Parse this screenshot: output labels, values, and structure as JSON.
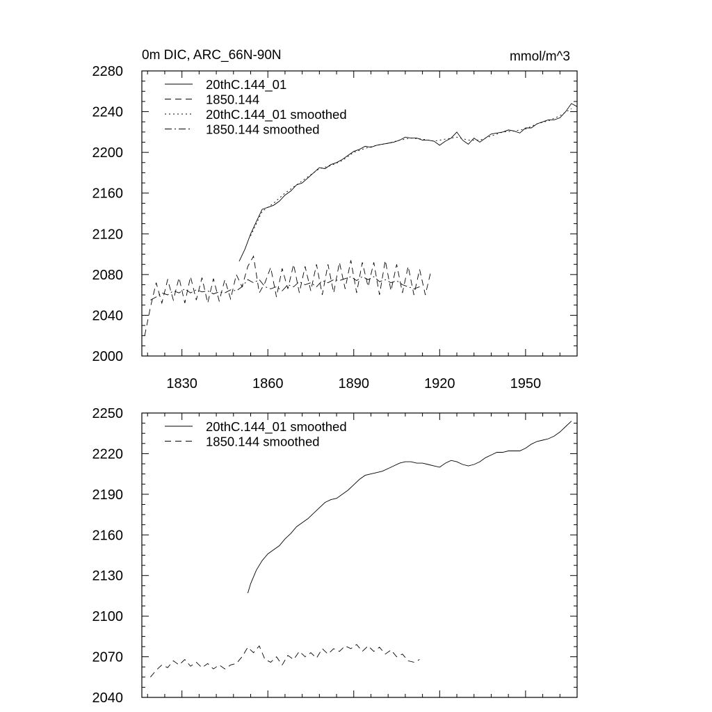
{
  "chart_data": [
    {
      "type": "line",
      "title": "0m DIC, ARC_66N-90N",
      "units": "mmol/m^3",
      "xlabel": "",
      "ylabel": "",
      "xlim": [
        1816,
        1968
      ],
      "ylim": [
        2000,
        2280
      ],
      "xticks": [
        1830,
        1860,
        1890,
        1920,
        1950
      ],
      "yticks": [
        2000,
        2040,
        2080,
        2120,
        2160,
        2200,
        2240,
        2280
      ],
      "legend_position": "top-left",
      "series": [
        {
          "name": "20thC.144_01",
          "style": "solid",
          "x": [
            1850,
            1852,
            1854,
            1856,
            1858,
            1860,
            1862,
            1864,
            1866,
            1868,
            1870,
            1872,
            1874,
            1876,
            1878,
            1880,
            1882,
            1884,
            1886,
            1888,
            1890,
            1892,
            1894,
            1896,
            1898,
            1900,
            1902,
            1904,
            1906,
            1908,
            1910,
            1912,
            1914,
            1916,
            1918,
            1920,
            1922,
            1924,
            1926,
            1928,
            1930,
            1932,
            1934,
            1936,
            1938,
            1940,
            1942,
            1944,
            1946,
            1948,
            1950,
            1952,
            1954,
            1956,
            1958,
            1960,
            1962,
            1964,
            1966,
            1968
          ],
          "values": [
            2093,
            2105,
            2120,
            2132,
            2144,
            2146,
            2148,
            2152,
            2158,
            2162,
            2168,
            2170,
            2175,
            2180,
            2185,
            2184,
            2188,
            2190,
            2193,
            2197,
            2201,
            2203,
            2206,
            2205,
            2207,
            2208,
            2209,
            2210,
            2212,
            2215,
            2214,
            2214,
            2212,
            2212,
            2211,
            2207,
            2211,
            2214,
            2220,
            2212,
            2208,
            2214,
            2210,
            2214,
            2218,
            2219,
            2220,
            2222,
            2221,
            2219,
            2224,
            2224,
            2228,
            2230,
            2232,
            2232,
            2234,
            2240,
            2248,
            2245
          ]
        },
        {
          "name": "1850.144",
          "style": "dashed",
          "x": [
            1817,
            1819,
            1821,
            1823,
            1825,
            1827,
            1829,
            1831,
            1833,
            1835,
            1837,
            1839,
            1841,
            1843,
            1845,
            1847,
            1849,
            1851,
            1853,
            1855,
            1857,
            1859,
            1861,
            1863,
            1865,
            1867,
            1869,
            1871,
            1873,
            1875,
            1877,
            1879,
            1881,
            1883,
            1885,
            1887,
            1889,
            1891,
            1893,
            1895,
            1897,
            1899,
            1901,
            1903,
            1905,
            1907,
            1909,
            1911,
            1913,
            1915,
            1917
          ],
          "values": [
            2020,
            2048,
            2072,
            2052,
            2075,
            2055,
            2077,
            2052,
            2078,
            2055,
            2077,
            2052,
            2076,
            2054,
            2075,
            2056,
            2080,
            2068,
            2088,
            2098,
            2062,
            2072,
            2087,
            2058,
            2086,
            2066,
            2090,
            2062,
            2088,
            2064,
            2090,
            2060,
            2090,
            2062,
            2092,
            2066,
            2094,
            2062,
            2092,
            2068,
            2092,
            2060,
            2094,
            2064,
            2090,
            2062,
            2088,
            2060,
            2085,
            2060,
            2084
          ]
        },
        {
          "name": "20thC.144_01 smoothed",
          "style": "dotted",
          "x": [
            1854,
            1858,
            1862,
            1866,
            1870,
            1874,
            1878,
            1882,
            1886,
            1890,
            1894,
            1898,
            1902,
            1906,
            1910,
            1914,
            1918,
            1922,
            1926,
            1930,
            1934,
            1938,
            1942,
            1946,
            1950,
            1954,
            1958,
            1962,
            1966
          ],
          "values": [
            2118,
            2142,
            2150,
            2160,
            2168,
            2176,
            2184,
            2187,
            2192,
            2200,
            2204,
            2207,
            2209,
            2212,
            2214,
            2213,
            2211,
            2213,
            2215,
            2212,
            2212,
            2216,
            2220,
            2221,
            2223,
            2228,
            2231,
            2236,
            2243
          ]
        },
        {
          "name": "1850.144 smoothed",
          "style": "dashdot",
          "x": [
            1819,
            1821,
            1823,
            1825,
            1827,
            1829,
            1831,
            1833,
            1835,
            1837,
            1839,
            1841,
            1843,
            1845,
            1847,
            1849,
            1851,
            1853,
            1855,
            1857,
            1859,
            1861,
            1863,
            1865,
            1867,
            1869,
            1871,
            1873,
            1875,
            1877,
            1879,
            1881,
            1883,
            1885,
            1887,
            1889,
            1891,
            1893,
            1895,
            1897,
            1899,
            1901,
            1903,
            1905,
            1907,
            1909,
            1911,
            1913
          ],
          "values": [
            2055,
            2058,
            2062,
            2060,
            2064,
            2062,
            2066,
            2062,
            2065,
            2063,
            2064,
            2061,
            2063,
            2062,
            2065,
            2064,
            2068,
            2075,
            2072,
            2075,
            2068,
            2066,
            2068,
            2064,
            2070,
            2068,
            2073,
            2070,
            2072,
            2068,
            2074,
            2072,
            2075,
            2074,
            2076,
            2078,
            2074,
            2078,
            2075,
            2078,
            2073,
            2075,
            2072,
            2074,
            2070,
            2068,
            2066,
            2068
          ]
        }
      ]
    },
    {
      "type": "line",
      "title": "",
      "xlabel": "",
      "ylabel": "",
      "xlim": [
        1816,
        1968
      ],
      "ylim": [
        2040,
        2250
      ],
      "xticks": [
        1830,
        1860,
        1890,
        1920,
        1950
      ],
      "yticks": [
        2040,
        2070,
        2100,
        2130,
        2160,
        2190,
        2220,
        2250
      ],
      "legend_position": "top-left",
      "series": [
        {
          "name": "20thC.144_01 smoothed",
          "style": "solid",
          "x": [
            1853,
            1854,
            1856,
            1858,
            1860,
            1862,
            1864,
            1866,
            1868,
            1870,
            1872,
            1874,
            1876,
            1878,
            1880,
            1882,
            1884,
            1886,
            1888,
            1890,
            1892,
            1894,
            1896,
            1898,
            1900,
            1902,
            1904,
            1906,
            1908,
            1910,
            1912,
            1914,
            1916,
            1918,
            1920,
            1922,
            1924,
            1926,
            1928,
            1930,
            1932,
            1934,
            1936,
            1938,
            1940,
            1942,
            1944,
            1946,
            1948,
            1950,
            1952,
            1954,
            1956,
            1958,
            1960,
            1962,
            1964,
            1966
          ],
          "values": [
            2117,
            2124,
            2134,
            2141,
            2146,
            2149,
            2152,
            2157,
            2161,
            2166,
            2169,
            2172,
            2176,
            2180,
            2184,
            2186,
            2187,
            2190,
            2193,
            2197,
            2201,
            2204,
            2205,
            2206,
            2207,
            2209,
            2211,
            2213,
            2214,
            2214,
            2213,
            2213,
            2212,
            2211,
            2210,
            2213,
            2215,
            2214,
            2212,
            2211,
            2212,
            2214,
            2217,
            2219,
            2221,
            2221,
            2222,
            2222,
            2222,
            2224,
            2227,
            2229,
            2230,
            2231,
            2233,
            2236,
            2240,
            2244
          ]
        },
        {
          "name": "1850.144 smoothed",
          "style": "dashed",
          "x": [
            1819,
            1821,
            1823,
            1825,
            1827,
            1829,
            1831,
            1833,
            1835,
            1837,
            1839,
            1841,
            1843,
            1845,
            1847,
            1849,
            1851,
            1853,
            1855,
            1857,
            1859,
            1861,
            1863,
            1865,
            1867,
            1869,
            1871,
            1873,
            1875,
            1877,
            1879,
            1881,
            1883,
            1885,
            1887,
            1889,
            1891,
            1893,
            1895,
            1897,
            1899,
            1901,
            1903,
            1905,
            1907,
            1909,
            1911,
            1913
          ],
          "values": [
            2055,
            2060,
            2064,
            2062,
            2067,
            2064,
            2068,
            2063,
            2066,
            2062,
            2065,
            2061,
            2064,
            2061,
            2064,
            2065,
            2070,
            2077,
            2073,
            2078,
            2068,
            2066,
            2070,
            2064,
            2071,
            2068,
            2074,
            2070,
            2073,
            2069,
            2076,
            2072,
            2076,
            2074,
            2078,
            2076,
            2079,
            2074,
            2078,
            2074,
            2077,
            2072,
            2075,
            2070,
            2072,
            2067,
            2066,
            2068
          ]
        }
      ]
    }
  ]
}
